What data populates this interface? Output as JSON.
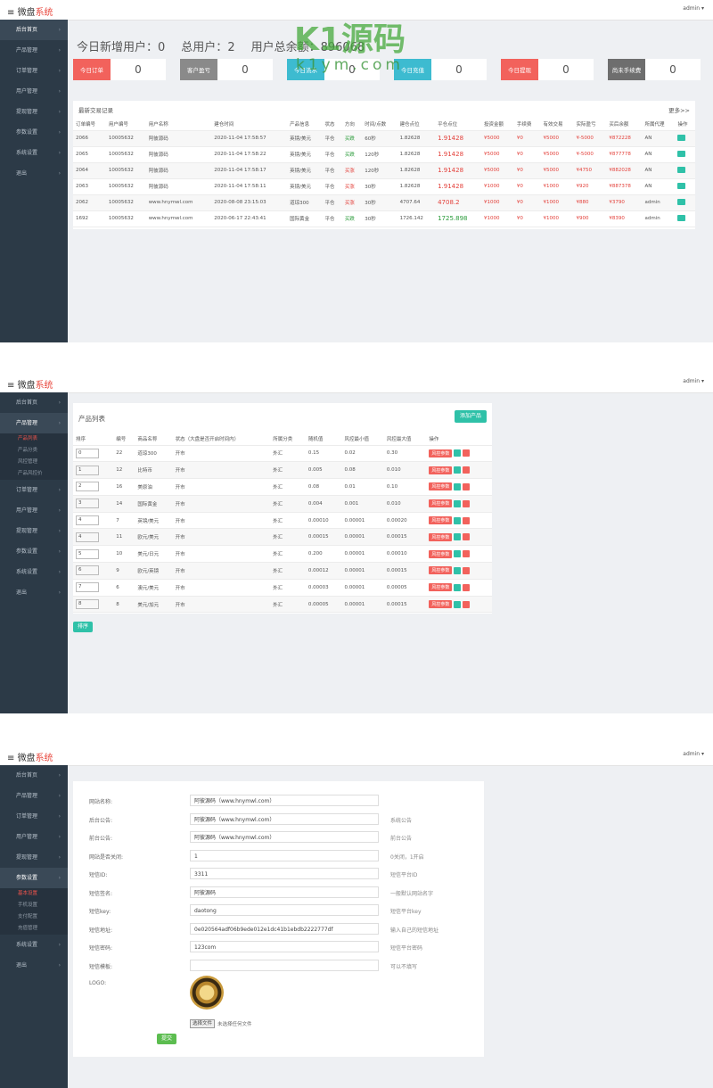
{
  "header": {
    "logo_a": "微盘",
    "logo_b": "系统",
    "user": "admin"
  },
  "sidebar": {
    "items": [
      "后台首页",
      "产品管理",
      "订单管理",
      "用户管理",
      "提现管理",
      "参数设置",
      "系统设置",
      "退出"
    ],
    "product_sub": [
      "产品列表",
      "产品分类",
      "风控管理",
      "产品风控价"
    ],
    "settings_sub": [
      "基本设置",
      "手机设置",
      "支付配置",
      "充值管理"
    ]
  },
  "watermark": {
    "line1": "K1源码",
    "line2": "k1ym.com"
  },
  "dashboard": {
    "stats": [
      {
        "label": "今日新增用户：",
        "value": 0
      },
      {
        "label": "总用户：",
        "value": 2
      },
      {
        "label": "用户总余额：",
        "value": 896068
      }
    ],
    "cards": [
      {
        "label": "今日订单",
        "value": 0,
        "color": "#f2625c"
      },
      {
        "label": "客户盈亏",
        "value": 0,
        "color": "#8a8a8a"
      },
      {
        "label": "今日流水",
        "value": 0,
        "color": "#3dbbd0"
      },
      {
        "label": "今日充值",
        "value": 0,
        "color": "#3dbbd0"
      },
      {
        "label": "今日提现",
        "value": 0,
        "color": "#f2625c"
      },
      {
        "label": "尚未手续费",
        "value": 0,
        "color": "#6e6e6e"
      }
    ],
    "trades": {
      "title": "最新交易记录",
      "more": "更多>>",
      "columns": [
        "订单编号",
        "用户编号",
        "用户名称",
        "建仓时间",
        "产品信息",
        "状态",
        "方向",
        "时间/点数",
        "建仓点位",
        "平仓点位",
        "投资金额",
        "手续费",
        "有效交易",
        "实际盈亏",
        "买后余额",
        "所属代理",
        "操作"
      ],
      "rows": [
        [
          "2066",
          "10005632",
          "阿彼源码",
          "2020-11-04 17:58:57",
          "英镑/美元",
          "平仓",
          "买跌",
          "60秒",
          "1.82628",
          "1.91428",
          "¥5000",
          "¥0",
          "¥5000",
          "¥-5000",
          "¥872228",
          "AN"
        ],
        [
          "2065",
          "10005632",
          "阿彼源码",
          "2020-11-04 17:58:22",
          "英镑/美元",
          "平仓",
          "买跌",
          "120秒",
          "1.82628",
          "1.91428",
          "¥5000",
          "¥0",
          "¥5000",
          "¥-5000",
          "¥877778",
          "AN"
        ],
        [
          "2064",
          "10005632",
          "阿彼源码",
          "2020-11-04 17:58:17",
          "英镑/美元",
          "平仓",
          "买涨",
          "120秒",
          "1.82628",
          "1.91428",
          "¥5000",
          "¥0",
          "¥5000",
          "¥4750",
          "¥882028",
          "AN"
        ],
        [
          "2063",
          "10005632",
          "阿彼源码",
          "2020-11-04 17:58:11",
          "英镑/美元",
          "平仓",
          "买涨",
          "30秒",
          "1.82628",
          "1.91428",
          "¥1000",
          "¥0",
          "¥1000",
          "¥920",
          "¥887378",
          "AN"
        ],
        [
          "2062",
          "10005632",
          "www.hnymwl.com",
          "2020-08-08 23:15:03",
          "道琼300",
          "平仓",
          "买涨",
          "30秒",
          "4707.64",
          "4708.2",
          "¥1000",
          "¥0",
          "¥1000",
          "¥880",
          "¥3790",
          "admin"
        ],
        [
          "1692",
          "10005632",
          "www.hnymwl.com",
          "2020-06-17 22:43:41",
          "国际黄金",
          "平仓",
          "买跌",
          "30秒",
          "1726.142",
          "1725.898",
          "¥1000",
          "¥0",
          "¥1000",
          "¥900",
          "¥8390",
          "admin"
        ]
      ]
    }
  },
  "products": {
    "title": "产品列表",
    "add_button": "添加产品",
    "op_button": "风控参数",
    "sort_button": "排序",
    "columns": [
      "排序",
      "编号",
      "商品名称",
      "状态（大盘是否开启时间内）",
      "所属分类",
      "随机值",
      "风控最小值",
      "风控最大值",
      "操作"
    ],
    "rows": [
      [
        "0",
        "22",
        "道琼300",
        "开市",
        "外汇",
        "0.15",
        "0.02",
        "0.30"
      ],
      [
        "1",
        "12",
        "比特币",
        "开市",
        "外汇",
        "0.005",
        "0.08",
        "0.010"
      ],
      [
        "2",
        "16",
        "美原油",
        "开市",
        "外汇",
        "0.08",
        "0.01",
        "0.10"
      ],
      [
        "3",
        "14",
        "国际黄金",
        "开市",
        "外汇",
        "0.004",
        "0.001",
        "0.010"
      ],
      [
        "4",
        "7",
        "英镑/美元",
        "开市",
        "外汇",
        "0.00010",
        "0.00001",
        "0.00020"
      ],
      [
        "4",
        "11",
        "欧元/美元",
        "开市",
        "外汇",
        "0.00015",
        "0.00001",
        "0.00015"
      ],
      [
        "5",
        "10",
        "美元/日元",
        "开市",
        "外汇",
        "0.200",
        "0.00001",
        "0.00010"
      ],
      [
        "6",
        "9",
        "欧元/英镑",
        "开市",
        "外汇",
        "0.00012",
        "0.00001",
        "0.00015"
      ],
      [
        "7",
        "6",
        "澳元/美元",
        "开市",
        "外汇",
        "0.00003",
        "0.00001",
        "0.00005"
      ],
      [
        "8",
        "8",
        "美元/加元",
        "开市",
        "外汇",
        "0.00005",
        "0.00001",
        "0.00015"
      ]
    ]
  },
  "settings": {
    "fields": [
      {
        "label": "网站名称:",
        "value": "阿彼源码（www.hnymwl.com）"
      },
      {
        "label": "后台公告:",
        "value": "阿彼源码（www.hnymwl.com）",
        "hint": "系统公告"
      },
      {
        "label": "前台公告:",
        "value": "阿彼源码（www.hnymwl.com）",
        "hint": "前台公告"
      },
      {
        "label": "网站是否关闭:",
        "value": "1",
        "hint": "0关闭，1开启"
      },
      {
        "label": "短信ID:",
        "value": "3311",
        "hint": "短信平台ID"
      },
      {
        "label": "短信签名:",
        "value": "阿彼源码",
        "hint": "一般默认网站名字"
      },
      {
        "label": "短信key:",
        "value": "daotong",
        "hint": "短信平台key"
      },
      {
        "label": "短信地址:",
        "value": "0e020564adf06b9ede012e1dc41b1ebdb2222777df",
        "hint": "输入自己的短信地址"
      },
      {
        "label": "短信密码:",
        "value": "123com",
        "hint": "短信平台密码"
      },
      {
        "label": "短信模板:",
        "hint": "可以不填写"
      }
    ],
    "logo_label": "LOGO:",
    "file_button": "选择文件",
    "file_text": "未选择任何文件",
    "submit": "提交"
  }
}
